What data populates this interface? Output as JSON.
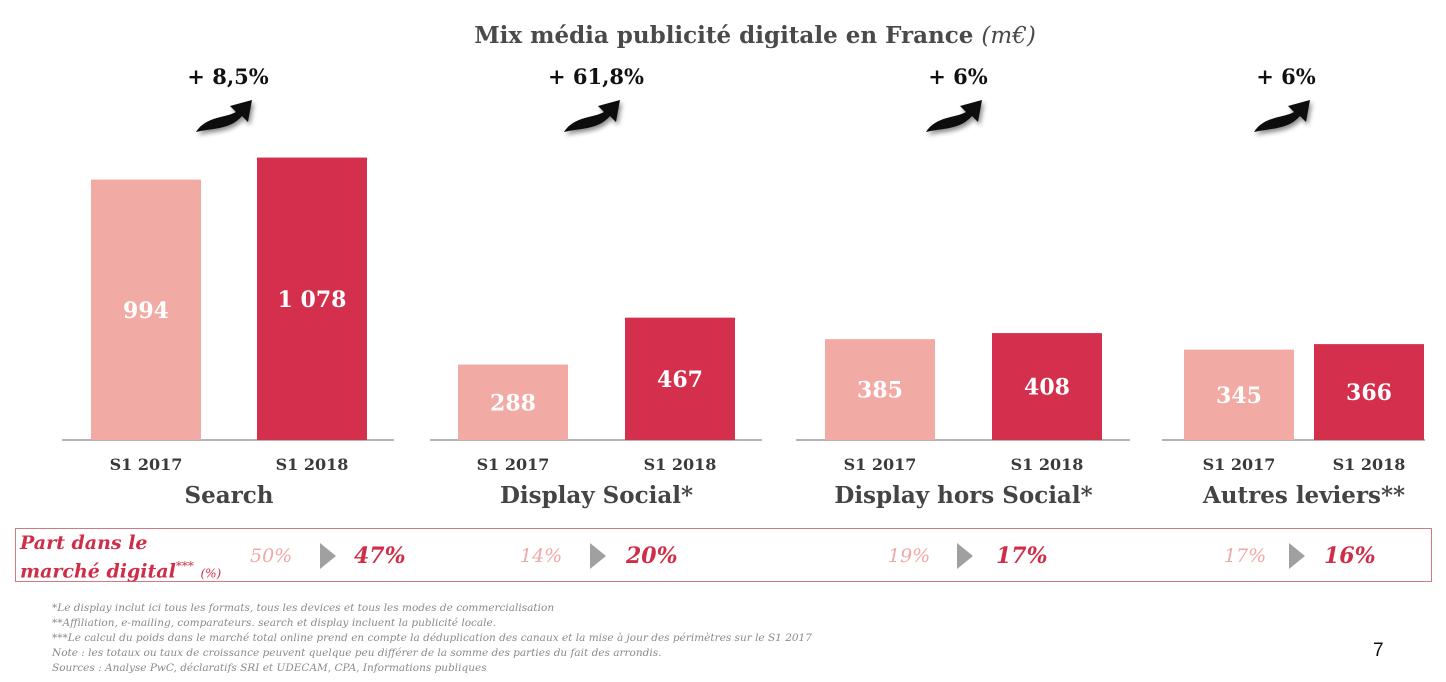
{
  "chart_data": {
    "type": "bar",
    "title": "Mix média publicité digitale en France",
    "unit": "(m€)",
    "series": [
      {
        "name": "S1 2017",
        "color": "#f2aaa4",
        "values": [
          994,
          288,
          385,
          345
        ]
      },
      {
        "name": "S1 2018",
        "color": "#d42f4c",
        "values": [
          1078,
          467,
          408,
          366
        ]
      }
    ],
    "groups": [
      {
        "label": "Search",
        "growth": "+ 8,5%",
        "bar_labels": [
          "994",
          "1 078"
        ]
      },
      {
        "label": "Display Social*",
        "growth": "+ 61,8%",
        "bar_labels": [
          "288",
          "467"
        ]
      },
      {
        "label": "Display hors Social*",
        "growth": "+ 6%",
        "bar_labels": [
          "385",
          "408"
        ]
      },
      {
        "label": "Autres leviers**",
        "growth": "+ 6%",
        "bar_labels": [
          "345",
          "366"
        ]
      }
    ],
    "period_labels": [
      "S1 2017",
      "S1 2018"
    ],
    "grid": false
  },
  "market_share": {
    "label_line1": "Part dans le",
    "label_line2": "marché digital",
    "label_sup": "***",
    "label_unit": "(%)",
    "rows": [
      {
        "old": "50%",
        "new": "47%"
      },
      {
        "old": "14%",
        "new": "20%"
      },
      {
        "old": "19%",
        "new": "17%"
      },
      {
        "old": "17%",
        "new": "16%"
      }
    ]
  },
  "footnotes": [
    "*Le display inclut ici tous les formats, tous les devices et tous les modes de commercialisation",
    "**Affiliation, e-mailing, comparateurs. search et display incluent la publicité locale.",
    "***Le calcul du poids dans le marché total online prend en compte la déduplication des canaux et la mise à jour des périmètres sur le S1 2017",
    "Note : les totaux ou taux de croissance peuvent quelque peu différer de la somme des parties du fait des arrondis.",
    "Sources : Analyse PwC, déclaratifs SRI et UDECAM, CPA, Informations publiques"
  ],
  "page_number": "7"
}
